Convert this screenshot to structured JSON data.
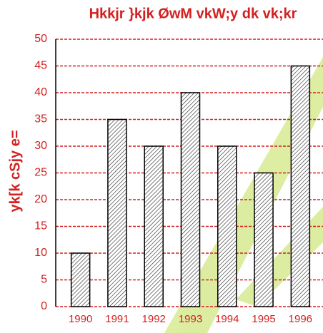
{
  "chart_data": {
    "type": "bar",
    "title": "Hkkjr }kjk ØwM vkW;y dk vk;kr",
    "y_label": "yk[k cSjy e=",
    "categories": [
      "1990",
      "1991",
      "1992",
      "1993",
      "1994",
      "1995",
      "1996"
    ],
    "values": [
      10,
      35,
      30,
      40,
      30,
      25,
      45
    ],
    "ylim": [
      0,
      50
    ],
    "yticks": [
      0,
      5,
      10,
      15,
      20,
      25,
      30,
      35,
      40,
      45,
      50
    ],
    "grid": true,
    "color": "#ffffff"
  }
}
